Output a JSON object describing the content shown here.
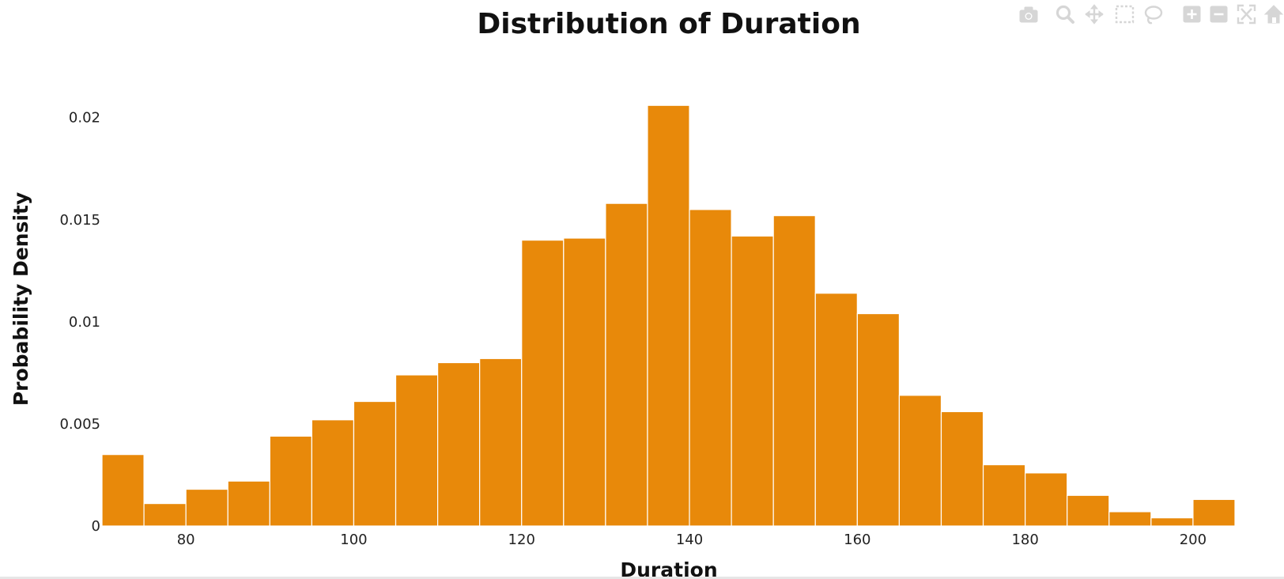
{
  "chart_data": {
    "type": "bar",
    "title": "Distribution of Duration",
    "xlabel": "Duration",
    "ylabel": "Probability Density",
    "bar_color": "#E8890A",
    "bin_width": 5,
    "bin_starts": [
      70,
      75,
      80,
      85,
      90,
      95,
      100,
      105,
      110,
      115,
      120,
      125,
      130,
      135,
      140,
      145,
      150,
      155,
      160,
      165,
      170,
      175,
      180,
      185,
      190,
      195,
      200
    ],
    "values": [
      0.0035,
      0.0011,
      0.0018,
      0.0022,
      0.0044,
      0.0052,
      0.0061,
      0.0074,
      0.008,
      0.0082,
      0.014,
      0.0141,
      0.0158,
      0.0206,
      0.0155,
      0.0142,
      0.0152,
      0.0114,
      0.0104,
      0.0064,
      0.0056,
      0.003,
      0.0026,
      0.0015,
      0.0007,
      0.0004,
      0.0013
    ],
    "xlim": [
      70,
      205
    ],
    "ylim": [
      0,
      0.0215
    ],
    "xticks": [
      80,
      100,
      120,
      140,
      160,
      180,
      200
    ],
    "xtick_labels": [
      "80",
      "100",
      "120",
      "140",
      "160",
      "180",
      "200"
    ],
    "yticks": [
      0,
      0.005,
      0.01,
      0.015,
      0.02
    ],
    "ytick_labels": [
      "0",
      "0.005",
      "0.01",
      "0.015",
      "0.02"
    ],
    "grid": false,
    "legend": "none"
  },
  "modebar": {
    "buttons": [
      {
        "name": "camera-icon"
      },
      {
        "name": "zoom-icon"
      },
      {
        "name": "pan-icon"
      },
      {
        "name": "box-select-icon"
      },
      {
        "name": "lasso-select-icon"
      },
      {
        "name": "zoom-in-icon"
      },
      {
        "name": "zoom-out-icon"
      },
      {
        "name": "autoscale-icon"
      },
      {
        "name": "reset-axes-icon"
      }
    ],
    "icon_color": "#d6d6d6"
  }
}
